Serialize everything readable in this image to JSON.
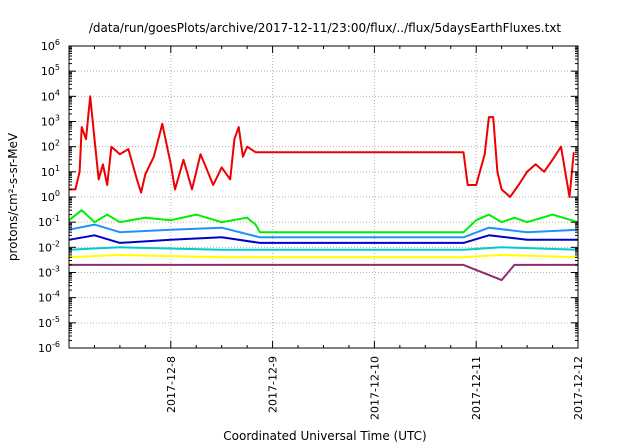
{
  "chart_data": {
    "type": "line",
    "title": "/data/run/goesPlots/archive/2017-12-11/23:00/flux/../flux/5daysEarthFluxes.txt",
    "xlabel": "Coordinated Universal Time (UTC)",
    "ylabel": "protons/cm²-s-sr-MeV",
    "y_scale": "log",
    "ylim": [
      1e-06,
      1000000.0
    ],
    "xlim": [
      "2017-12-07 00:00",
      "2017-12-12 00:00"
    ],
    "x_tick_labels": [
      "2017-12-8",
      "2017-12-9",
      "2017-12-10",
      "2017-12-11",
      "2017-12-12"
    ],
    "y_tick_labels": [
      {
        "base": "10",
        "exp": "-6"
      },
      {
        "base": "10",
        "exp": "-5"
      },
      {
        "base": "10",
        "exp": "-4"
      },
      {
        "base": "10",
        "exp": "-3"
      },
      {
        "base": "10",
        "exp": "-2"
      },
      {
        "base": "10",
        "exp": "-1"
      },
      {
        "base": "10",
        "exp": "0"
      },
      {
        "base": "10",
        "exp": "1"
      },
      {
        "base": "10",
        "exp": "2"
      },
      {
        "base": "10",
        "exp": "3"
      },
      {
        "base": "10",
        "exp": "4"
      },
      {
        "base": "10",
        "exp": "5"
      },
      {
        "base": "10",
        "exp": "6"
      }
    ],
    "grid": true,
    "legend": "none",
    "series": [
      {
        "color": "#ee0000",
        "points": [
          [
            "2017-12-07 00:00",
            2
          ],
          [
            "2017-12-07 01:30",
            2
          ],
          [
            "2017-12-07 02:30",
            10
          ],
          [
            "2017-12-07 03:00",
            600
          ],
          [
            "2017-12-07 04:00",
            200
          ],
          [
            "2017-12-07 05:00",
            10000
          ],
          [
            "2017-12-07 06:00",
            200
          ],
          [
            "2017-12-07 07:00",
            5
          ],
          [
            "2017-12-07 08:00",
            20
          ],
          [
            "2017-12-07 09:00",
            3
          ],
          [
            "2017-12-07 10:00",
            100
          ],
          [
            "2017-12-07 12:00",
            50
          ],
          [
            "2017-12-07 14:00",
            80
          ],
          [
            "2017-12-07 16:00",
            5
          ],
          [
            "2017-12-07 17:00",
            1.5
          ],
          [
            "2017-12-07 18:00",
            8
          ],
          [
            "2017-12-07 20:00",
            40
          ],
          [
            "2017-12-07 22:00",
            800
          ],
          [
            "2017-12-08 00:00",
            20
          ],
          [
            "2017-12-08 01:00",
            2
          ],
          [
            "2017-12-08 03:00",
            30
          ],
          [
            "2017-12-08 05:00",
            2
          ],
          [
            "2017-12-08 07:00",
            50
          ],
          [
            "2017-12-08 08:00",
            20
          ],
          [
            "2017-12-08 10:00",
            3
          ],
          [
            "2017-12-08 12:00",
            15
          ],
          [
            "2017-12-08 14:00",
            5
          ],
          [
            "2017-12-08 15:00",
            200
          ],
          [
            "2017-12-08 16:00",
            600
          ],
          [
            "2017-12-08 17:00",
            40
          ],
          [
            "2017-12-08 18:00",
            100
          ],
          [
            "2017-12-08 20:00",
            60
          ],
          [
            "2017-12-08 21:00",
            60
          ],
          [
            "2017-12-10 21:00",
            60
          ],
          [
            "2017-12-10 22:00",
            3
          ],
          [
            "2017-12-11 00:00",
            3
          ],
          [
            "2017-12-11 02:00",
            50
          ],
          [
            "2017-12-11 03:00",
            1500
          ],
          [
            "2017-12-11 04:00",
            1500
          ],
          [
            "2017-12-11 05:00",
            10
          ],
          [
            "2017-12-11 06:00",
            2
          ],
          [
            "2017-12-11 08:00",
            1
          ],
          [
            "2017-12-11 10:00",
            3
          ],
          [
            "2017-12-11 12:00",
            10
          ],
          [
            "2017-12-11 14:00",
            20
          ],
          [
            "2017-12-11 16:00",
            10
          ],
          [
            "2017-12-11 18:00",
            30
          ],
          [
            "2017-12-11 20:00",
            100
          ],
          [
            "2017-12-11 22:00",
            1
          ],
          [
            "2017-12-11 23:00",
            60
          ]
        ]
      },
      {
        "color": "#00ee00",
        "points": [
          [
            "2017-12-07 00:00",
            0.12
          ],
          [
            "2017-12-07 03:00",
            0.3
          ],
          [
            "2017-12-07 06:00",
            0.1
          ],
          [
            "2017-12-07 09:00",
            0.2
          ],
          [
            "2017-12-07 12:00",
            0.1
          ],
          [
            "2017-12-07 18:00",
            0.15
          ],
          [
            "2017-12-08 00:00",
            0.12
          ],
          [
            "2017-12-08 06:00",
            0.2
          ],
          [
            "2017-12-08 12:00",
            0.1
          ],
          [
            "2017-12-08 18:00",
            0.15
          ],
          [
            "2017-12-08 20:00",
            0.08
          ],
          [
            "2017-12-08 21:00",
            0.04
          ],
          [
            "2017-12-10 21:00",
            0.04
          ],
          [
            "2017-12-11 00:00",
            0.12
          ],
          [
            "2017-12-11 03:00",
            0.2
          ],
          [
            "2017-12-11 06:00",
            0.1
          ],
          [
            "2017-12-11 09:00",
            0.15
          ],
          [
            "2017-12-11 12:00",
            0.1
          ],
          [
            "2017-12-11 18:00",
            0.2
          ],
          [
            "2017-12-12 00:00",
            0.1
          ]
        ]
      },
      {
        "color": "#1e90ff",
        "points": [
          [
            "2017-12-07 00:00",
            0.05
          ],
          [
            "2017-12-07 06:00",
            0.08
          ],
          [
            "2017-12-07 12:00",
            0.04
          ],
          [
            "2017-12-08 00:00",
            0.05
          ],
          [
            "2017-12-08 12:00",
            0.06
          ],
          [
            "2017-12-08 21:00",
            0.025
          ],
          [
            "2017-12-10 21:00",
            0.025
          ],
          [
            "2017-12-11 03:00",
            0.06
          ],
          [
            "2017-12-11 12:00",
            0.04
          ],
          [
            "2017-12-12 00:00",
            0.05
          ]
        ]
      },
      {
        "color": "#0000cd",
        "points": [
          [
            "2017-12-07 00:00",
            0.02
          ],
          [
            "2017-12-07 06:00",
            0.03
          ],
          [
            "2017-12-07 12:00",
            0.015
          ],
          [
            "2017-12-08 00:00",
            0.02
          ],
          [
            "2017-12-08 12:00",
            0.025
          ],
          [
            "2017-12-08 21:00",
            0.015
          ],
          [
            "2017-12-10 21:00",
            0.015
          ],
          [
            "2017-12-11 03:00",
            0.03
          ],
          [
            "2017-12-11 12:00",
            0.02
          ],
          [
            "2017-12-12 00:00",
            0.02
          ]
        ]
      },
      {
        "color": "#00cccc",
        "points": [
          [
            "2017-12-07 00:00",
            0.008
          ],
          [
            "2017-12-07 12:00",
            0.01
          ],
          [
            "2017-12-08 12:00",
            0.008
          ],
          [
            "2017-12-08 21:00",
            0.008
          ],
          [
            "2017-12-10 21:00",
            0.008
          ],
          [
            "2017-12-11 06:00",
            0.01
          ],
          [
            "2017-12-12 00:00",
            0.008
          ]
        ]
      },
      {
        "color": "#ffff00",
        "points": [
          [
            "2017-12-07 00:00",
            0.004
          ],
          [
            "2017-12-07 12:00",
            0.005
          ],
          [
            "2017-12-08 12:00",
            0.004
          ],
          [
            "2017-12-08 21:00",
            0.004
          ],
          [
            "2017-12-10 21:00",
            0.004
          ],
          [
            "2017-12-11 06:00",
            0.005
          ],
          [
            "2017-12-12 00:00",
            0.004
          ]
        ]
      },
      {
        "color": "#8b2d6d",
        "points": [
          [
            "2017-12-07 00:00",
            0.002
          ],
          [
            "2017-12-07 12:00",
            0.002
          ],
          [
            "2017-12-08 12:00",
            0.002
          ],
          [
            "2017-12-08 21:00",
            0.002
          ],
          [
            "2017-12-10 21:00",
            0.002
          ],
          [
            "2017-12-11 06:00",
            0.0005
          ],
          [
            "2017-12-11 09:00",
            0.002
          ],
          [
            "2017-12-12 00:00",
            0.002
          ]
        ]
      }
    ]
  }
}
